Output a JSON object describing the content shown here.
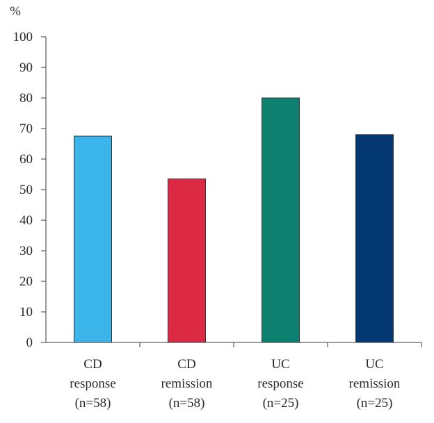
{
  "chart_data": {
    "type": "bar",
    "title": "",
    "xlabel": "",
    "ylabel": "%",
    "ylim": [
      0,
      100
    ],
    "yticks": [
      0,
      10,
      20,
      30,
      40,
      50,
      60,
      70,
      80,
      90,
      100
    ],
    "grid": false,
    "categories": [
      [
        "CD",
        "response",
        "(n=58)"
      ],
      [
        "CD",
        "remission",
        "(n=58)"
      ],
      [
        "UC",
        "response",
        "(n=25)"
      ],
      [
        "UC",
        "remission",
        "(n=25)"
      ]
    ],
    "values": [
      67.5,
      53.5,
      80,
      68
    ],
    "colors": [
      "#3bb4ea",
      "#dc2a45",
      "#0e8070",
      "#033873"
    ]
  }
}
